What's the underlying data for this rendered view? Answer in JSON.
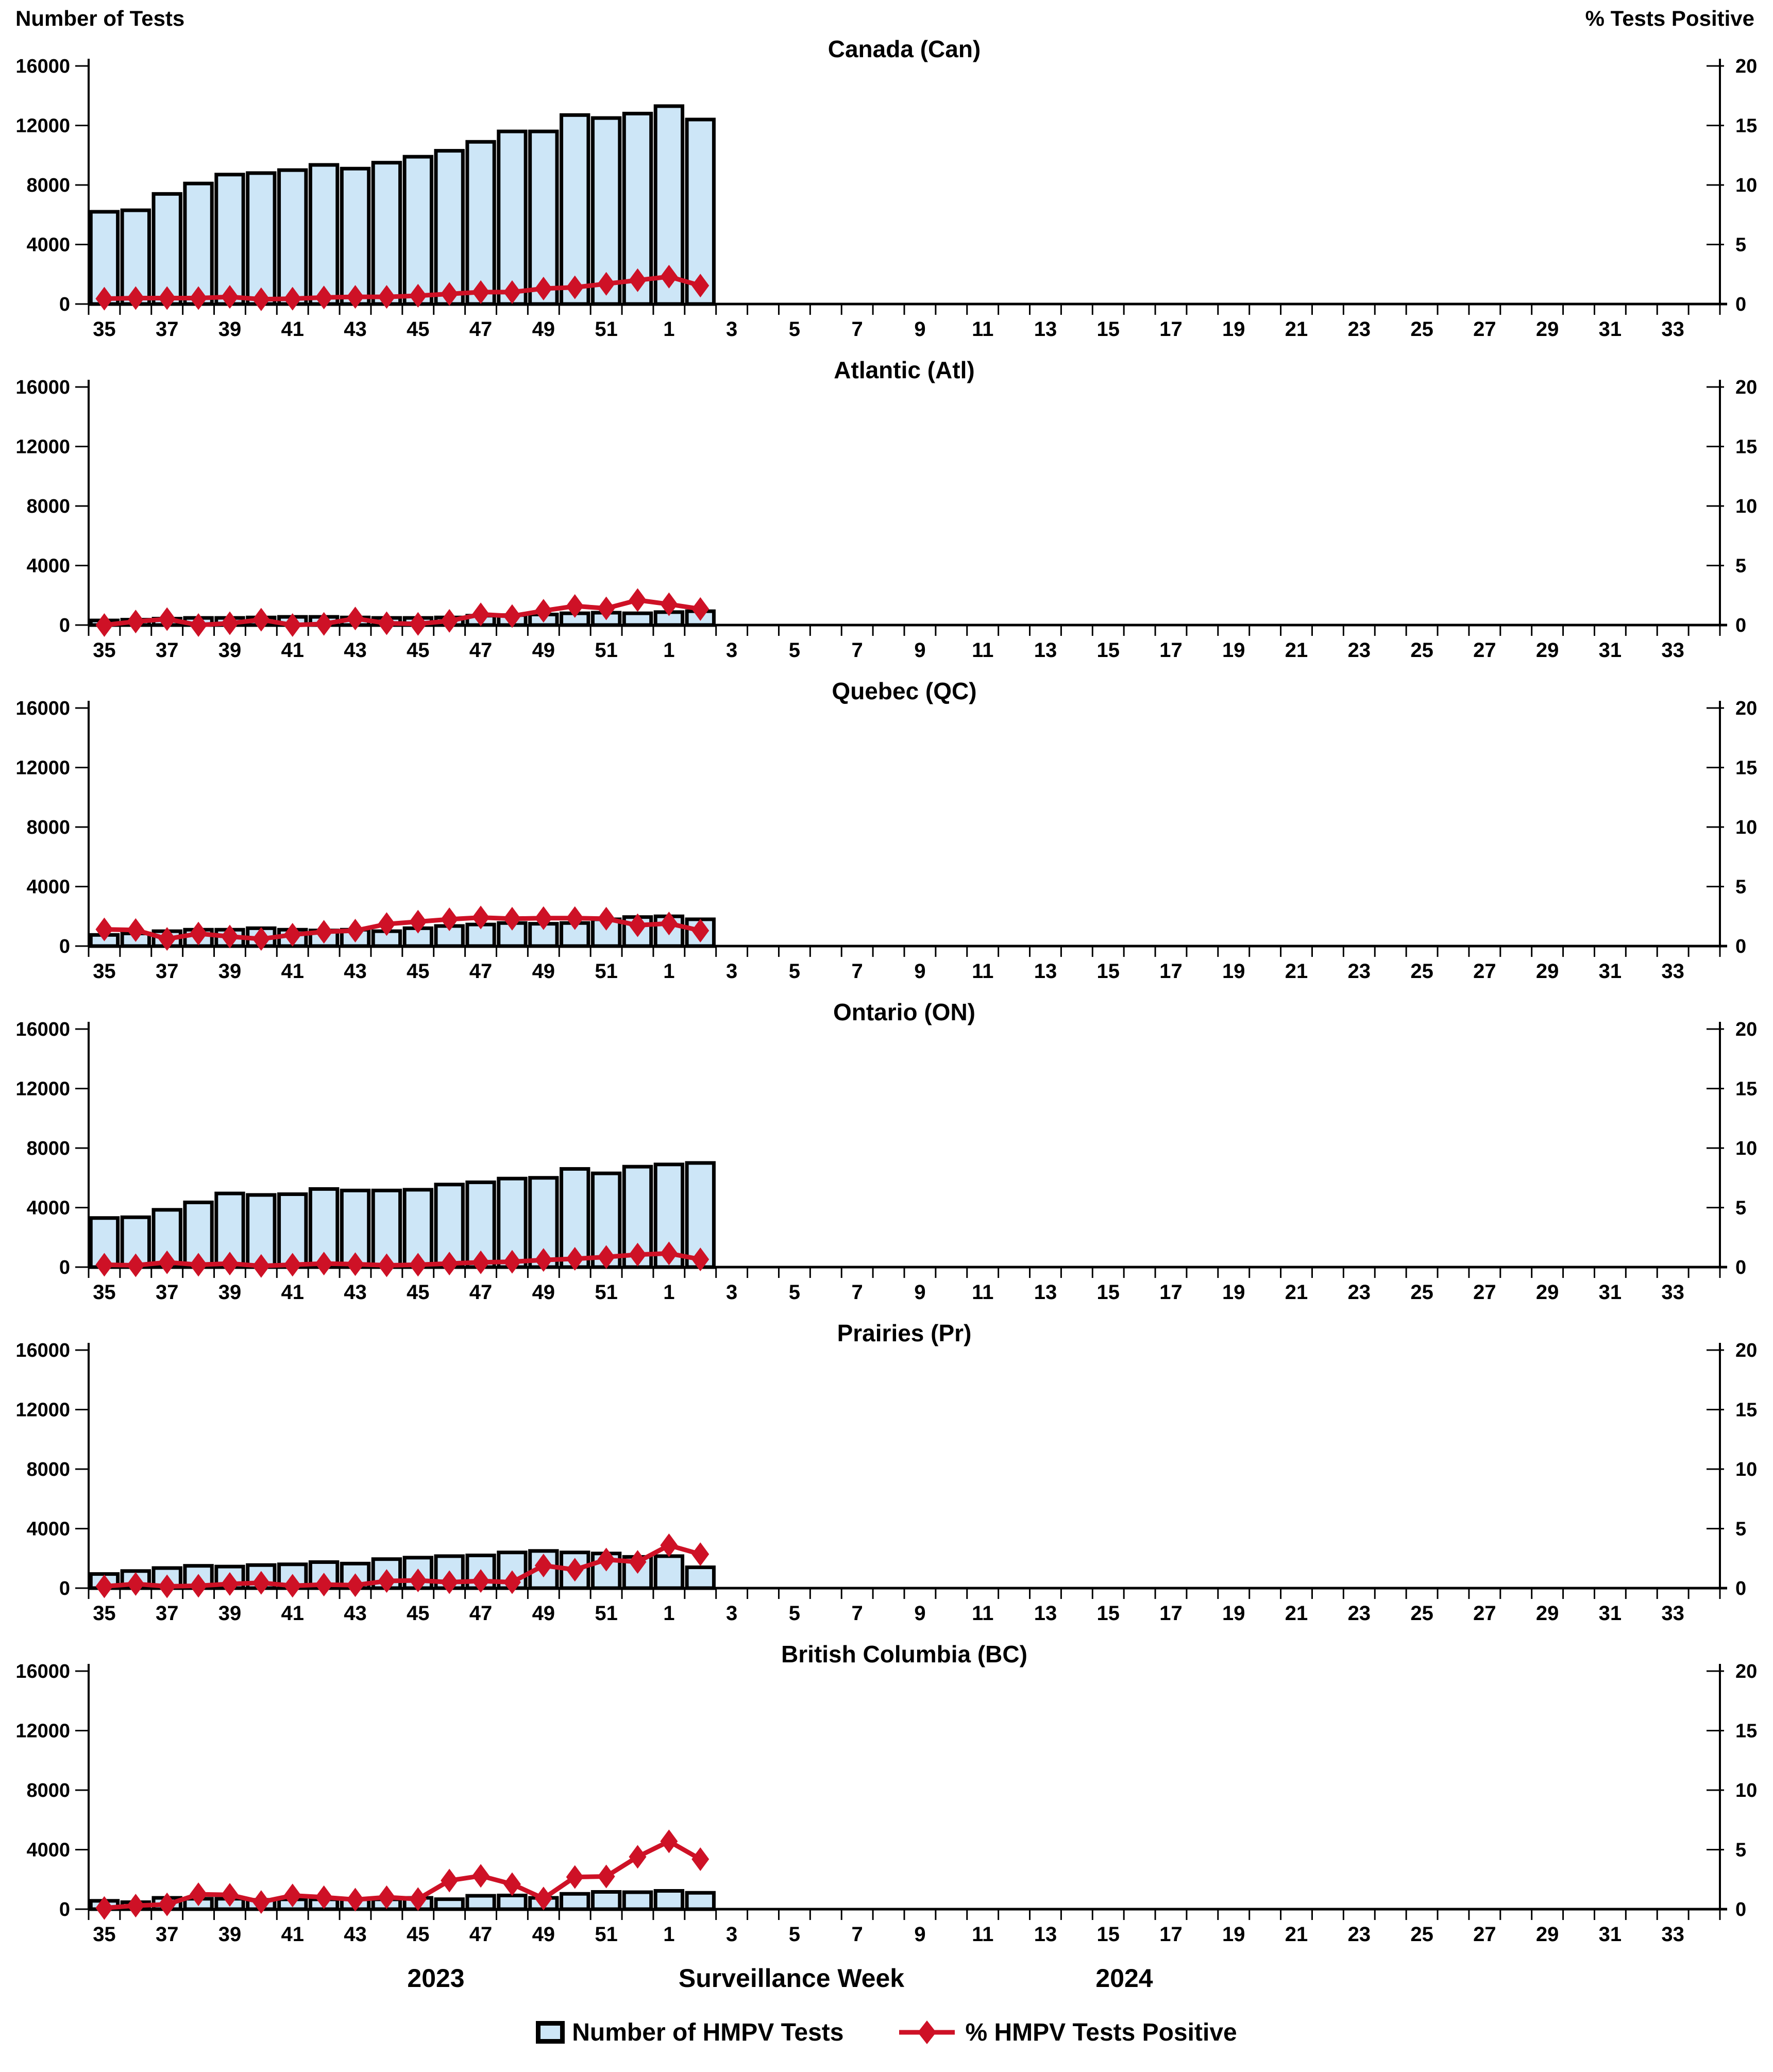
{
  "page": {
    "left_axis_header": "Number of Tests",
    "right_axis_header": "% Tests Positive",
    "x_axis_title": "Surveillance Week",
    "year_left": "2023",
    "year_right": "2024",
    "legend": {
      "bars": "Number of HMPV Tests",
      "line": "% HMPV Tests Positive"
    },
    "colors": {
      "bar_fill": "#CDE6F7",
      "bar_border": "#000000",
      "line": "#CE1126",
      "axis": "#000000"
    }
  },
  "axes": {
    "left_ticks": [
      0,
      4000,
      8000,
      12000,
      16000
    ],
    "right_ticks": [
      0,
      5,
      10,
      15,
      20
    ],
    "left_max": 16000,
    "right_max": 20,
    "x_weeks": [
      35,
      36,
      37,
      38,
      39,
      40,
      41,
      42,
      43,
      44,
      45,
      46,
      47,
      48,
      49,
      50,
      51,
      52,
      1,
      2,
      3,
      4,
      5,
      6,
      7,
      8,
      9,
      10,
      11,
      12,
      13,
      14,
      15,
      16,
      17,
      18,
      19,
      20,
      21,
      22,
      23,
      24,
      25,
      26,
      27,
      28,
      29,
      30,
      31,
      32,
      33,
      34
    ],
    "label_odd_weeks_only": true
  },
  "chart_data": [
    {
      "type": "bar",
      "title": "Canada (Can)",
      "categories": [
        35,
        36,
        37,
        38,
        39,
        40,
        41,
        42,
        43,
        44,
        45,
        46,
        47,
        48,
        49,
        50,
        51,
        52,
        1,
        2
      ],
      "ylim_left": [
        0,
        16000
      ],
      "ylim_right": [
        0,
        20
      ],
      "series": [
        {
          "name": "Number of HMPV Tests",
          "axis": "left",
          "values": [
            6200,
            6300,
            7400,
            8100,
            8700,
            8800,
            9000,
            9350,
            9100,
            9500,
            9900,
            10300,
            10900,
            11600,
            11600,
            12700,
            12500,
            12800,
            13300,
            12400
          ]
        },
        {
          "name": "% HMPV Tests Positive",
          "axis": "right",
          "values": [
            0.45,
            0.5,
            0.5,
            0.5,
            0.6,
            0.4,
            0.45,
            0.55,
            0.6,
            0.6,
            0.7,
            0.85,
            1.0,
            1.0,
            1.3,
            1.4,
            1.7,
            2.0,
            2.3,
            1.55
          ]
        }
      ]
    },
    {
      "type": "bar",
      "title": "Atlantic (Atl)",
      "categories": [
        35,
        36,
        37,
        38,
        39,
        40,
        41,
        42,
        43,
        44,
        45,
        46,
        47,
        48,
        49,
        50,
        51,
        52,
        1,
        2
      ],
      "ylim_left": [
        0,
        16000
      ],
      "ylim_right": [
        0,
        20
      ],
      "series": [
        {
          "name": "Number of HMPV Tests",
          "axis": "left",
          "values": [
            310,
            360,
            430,
            480,
            480,
            510,
            550,
            550,
            510,
            480,
            480,
            510,
            630,
            670,
            710,
            790,
            830,
            790,
            870,
            930
          ]
        },
        {
          "name": "% HMPV Tests Positive",
          "axis": "right",
          "values": [
            0.0,
            0.3,
            0.5,
            0.0,
            0.15,
            0.45,
            0.0,
            0.1,
            0.55,
            0.15,
            0.1,
            0.35,
            0.9,
            0.75,
            1.2,
            1.6,
            1.4,
            2.1,
            1.75,
            1.35
          ]
        }
      ]
    },
    {
      "type": "bar",
      "title": "Quebec (QC)",
      "categories": [
        35,
        36,
        37,
        38,
        39,
        40,
        41,
        42,
        43,
        44,
        45,
        46,
        47,
        48,
        49,
        50,
        51,
        52,
        1,
        2
      ],
      "ylim_left": [
        0,
        16000
      ],
      "ylim_right": [
        0,
        20
      ],
      "series": [
        {
          "name": "Number of HMPV Tests",
          "axis": "left",
          "values": [
            750,
            850,
            1000,
            1100,
            1100,
            1200,
            1100,
            1050,
            1100,
            1000,
            1200,
            1350,
            1450,
            1550,
            1500,
            1550,
            1800,
            1950,
            2000,
            1800
          ]
        },
        {
          "name": "% HMPV Tests Positive",
          "axis": "right",
          "values": [
            1.4,
            1.35,
            0.6,
            1.05,
            0.8,
            0.6,
            0.95,
            1.2,
            1.3,
            1.85,
            2.05,
            2.25,
            2.4,
            2.3,
            2.35,
            2.35,
            2.3,
            1.75,
            1.9,
            1.3
          ]
        }
      ]
    },
    {
      "type": "bar",
      "title": "Ontario (ON)",
      "categories": [
        35,
        36,
        37,
        38,
        39,
        40,
        41,
        42,
        43,
        44,
        45,
        46,
        47,
        48,
        49,
        50,
        51,
        52,
        1,
        2
      ],
      "ylim_left": [
        0,
        16000
      ],
      "ylim_right": [
        0,
        20
      ],
      "series": [
        {
          "name": "Number of HMPV Tests",
          "axis": "left",
          "values": [
            3300,
            3350,
            3850,
            4350,
            4950,
            4850,
            4900,
            5250,
            5150,
            5150,
            5200,
            5550,
            5700,
            5950,
            6000,
            6600,
            6300,
            6750,
            6900,
            7000
          ]
        },
        {
          "name": "% HMPV Tests Positive",
          "axis": "right",
          "values": [
            0.2,
            0.15,
            0.4,
            0.2,
            0.3,
            0.1,
            0.2,
            0.3,
            0.25,
            0.15,
            0.2,
            0.3,
            0.4,
            0.45,
            0.6,
            0.7,
            0.85,
            1.05,
            1.15,
            0.65
          ]
        }
      ]
    },
    {
      "type": "bar",
      "title": "Prairies (Pr)",
      "categories": [
        35,
        36,
        37,
        38,
        39,
        40,
        41,
        42,
        43,
        44,
        45,
        46,
        47,
        48,
        49,
        50,
        51,
        52,
        1,
        2
      ],
      "ylim_left": [
        0,
        16000
      ],
      "ylim_right": [
        0,
        20
      ],
      "series": [
        {
          "name": "Number of HMPV Tests",
          "axis": "left",
          "values": [
            950,
            1150,
            1350,
            1500,
            1450,
            1550,
            1600,
            1750,
            1650,
            1950,
            2050,
            2150,
            2200,
            2400,
            2500,
            2400,
            2330,
            2100,
            2150,
            1400
          ]
        },
        {
          "name": "% HMPV Tests Positive",
          "axis": "right",
          "values": [
            0.15,
            0.35,
            0.15,
            0.2,
            0.35,
            0.45,
            0.2,
            0.3,
            0.25,
            0.6,
            0.65,
            0.5,
            0.6,
            0.5,
            1.9,
            1.55,
            2.4,
            2.2,
            3.6,
            2.85
          ]
        }
      ]
    },
    {
      "type": "bar",
      "title": "British Columbia (BC)",
      "categories": [
        35,
        36,
        37,
        38,
        39,
        40,
        41,
        42,
        43,
        44,
        45,
        46,
        47,
        48,
        49,
        50,
        51,
        52,
        1,
        2
      ],
      "ylim_left": [
        0,
        16000
      ],
      "ylim_right": [
        0,
        20
      ],
      "series": [
        {
          "name": "Number of HMPV Tests",
          "axis": "left",
          "values": [
            560,
            470,
            760,
            700,
            700,
            630,
            660,
            660,
            660,
            660,
            760,
            670,
            900,
            920,
            760,
            1030,
            1160,
            1140,
            1230,
            1100
          ]
        },
        {
          "name": "% HMPV Tests Positive",
          "axis": "right",
          "values": [
            0.1,
            0.3,
            0.4,
            1.25,
            1.2,
            0.6,
            1.15,
            1.0,
            0.8,
            1.0,
            0.85,
            2.4,
            2.8,
            2.1,
            0.9,
            2.7,
            2.75,
            4.4,
            5.7,
            4.2
          ]
        }
      ]
    }
  ]
}
